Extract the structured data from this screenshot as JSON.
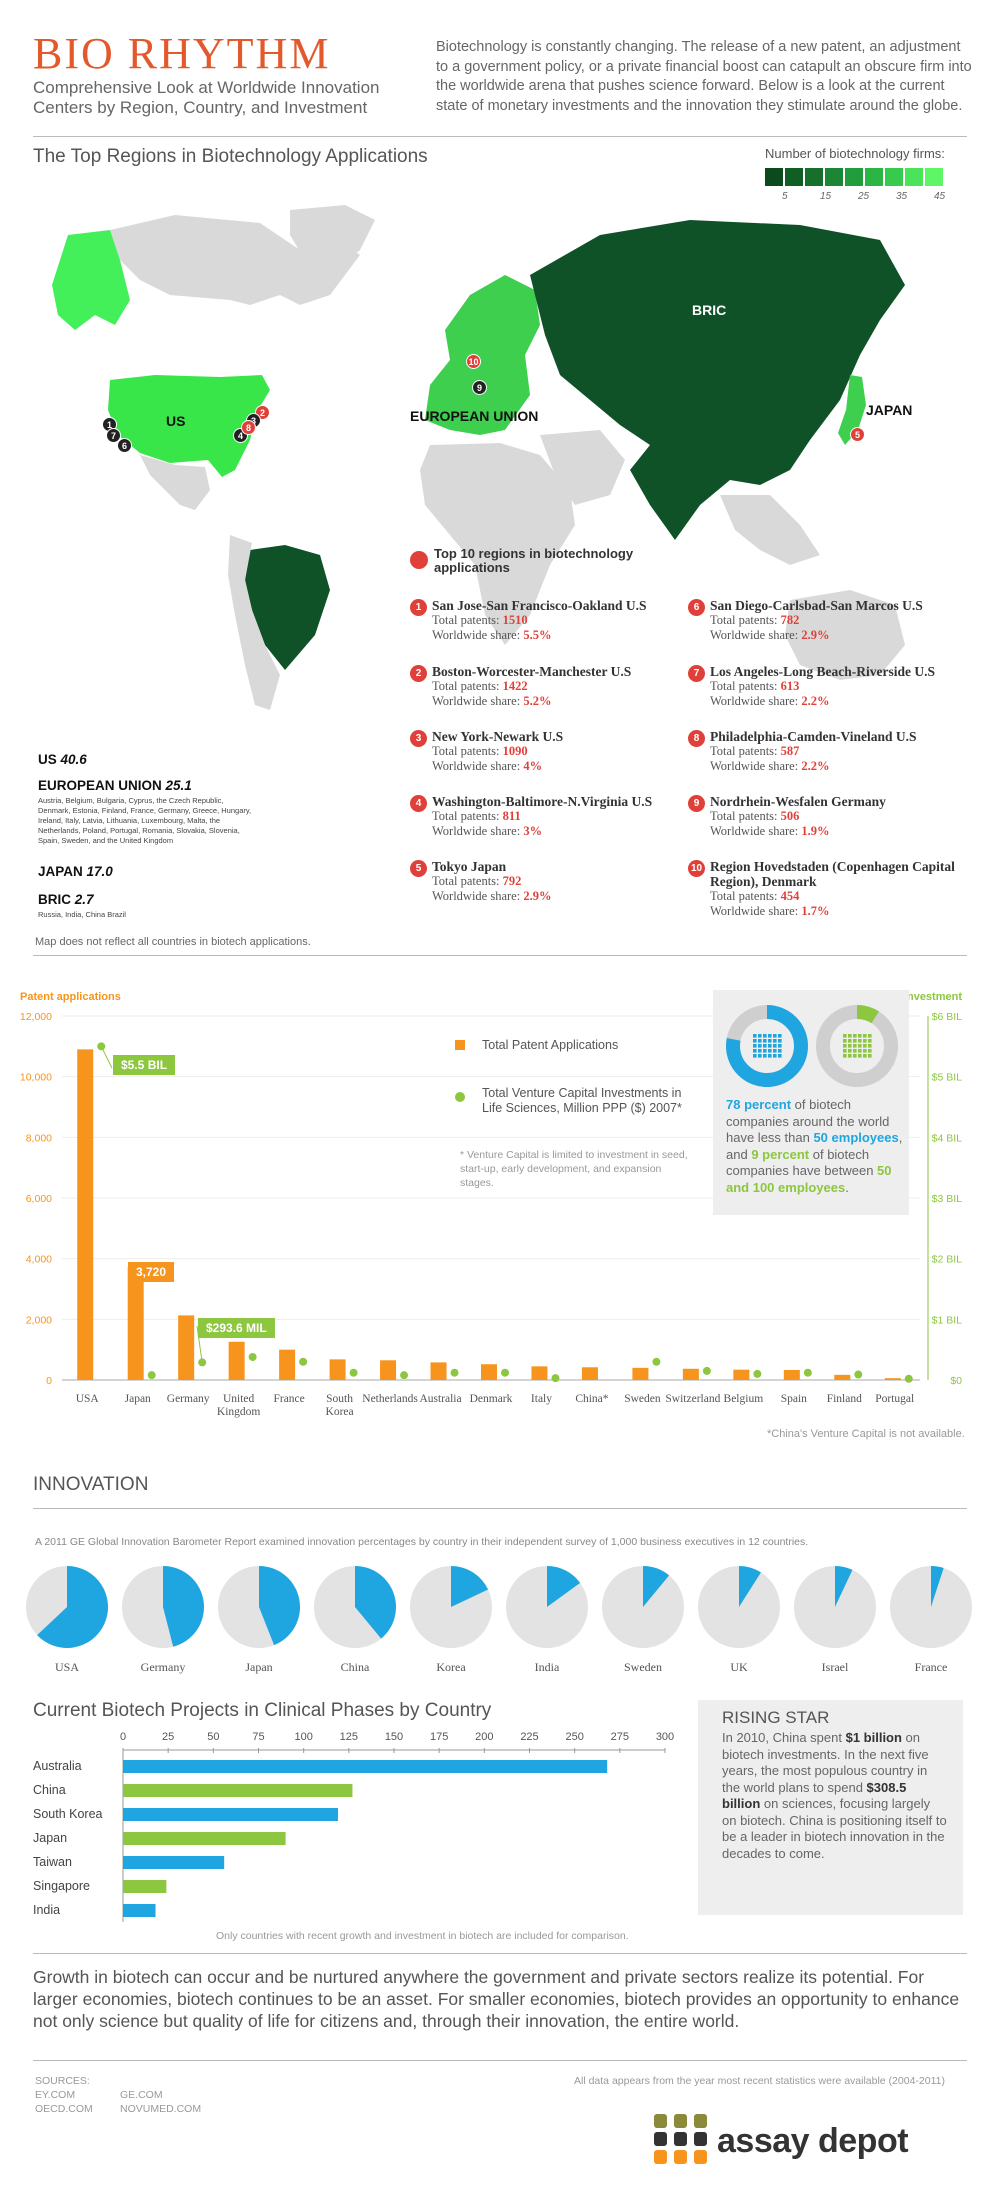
{
  "header": {
    "title": "BIO RHYTHM",
    "subtitle": "Comprehensive Look at Worldwide Innovation Centers by Region, Country, and Investment",
    "intro": "Biotechnology is constantly changing. The release of a new patent, an adjustment to a government policy, or a private financial boost can catapult an obscure firm into the worldwide arena that pushes science forward. Below is a look at the current state of monetary investments and the innovation they stimulate around the globe."
  },
  "map": {
    "title": "The Top Regions in Biotechnology Applications",
    "firms_legend": {
      "title": "Number of biotechnology firms:",
      "ticks": [
        "5",
        "15",
        "25",
        "35",
        "45"
      ],
      "colors": [
        "#0c4a1e",
        "#115e25",
        "#16702c",
        "#1c8634",
        "#229d3c",
        "#2ab545",
        "#36cb4e",
        "#49e45a",
        "#5ef566"
      ]
    },
    "colors": {
      "land": "#d9d9d9",
      "us": "#39e64a",
      "alaska": "#43f05a",
      "eu": "#3dcf4d",
      "bric": "#0f5228",
      "japan": "#3dcf4d"
    },
    "region_labels": {
      "us": "US",
      "eu": "EUROPEAN UNION",
      "bric": "BRIC",
      "japan": "JAPAN"
    },
    "legend_label": "Top 10 regions in biotechnology applications",
    "top10": [
      {
        "num": "1",
        "name": "San Jose-San Francisco-Oakland U.S",
        "patents_label": "Total patents:",
        "patents": "1510",
        "share_label": "Worldwide share:",
        "share": "5.5%"
      },
      {
        "num": "2",
        "name": "Boston-Worcester-Manchester U.S",
        "patents_label": "Total patents:",
        "patents": "1422",
        "share_label": "Worldwide share:",
        "share": "5.2%"
      },
      {
        "num": "3",
        "name": "New York-Newark U.S",
        "patents_label": "Total patents:",
        "patents": "1090",
        "share_label": "Worldwide share:",
        "share": "4%"
      },
      {
        "num": "4",
        "name": "Washington-Baltimore-N.Virginia U.S",
        "patents_label": "Total patents:",
        "patents": "811",
        "share_label": "Worldwide share:",
        "share": "3%"
      },
      {
        "num": "5",
        "name": "Tokyo Japan",
        "patents_label": "Total patents:",
        "patents": "792",
        "share_label": "Worldwide share:",
        "share": "2.9%"
      },
      {
        "num": "6",
        "name": "San Diego-Carlsbad-San Marcos U.S",
        "patents_label": "Total patents:",
        "patents": "782",
        "share_label": "Worldwide share:",
        "share": "2.9%"
      },
      {
        "num": "7",
        "name": "Los Angeles-Long Beach-Riverside U.S",
        "patents_label": "Total patents:",
        "patents": "613",
        "share_label": "Worldwide share:",
        "share": "2.2%"
      },
      {
        "num": "8",
        "name": "Philadelphia-Camden-Vineland U.S",
        "patents_label": "Total patents:",
        "patents": "587",
        "share_label": "Worldwide share:",
        "share": "2.2%"
      },
      {
        "num": "9",
        "name": "Nordrhein-Wesfalen Germany",
        "patents_label": "Total patents:",
        "patents": "506",
        "share_label": "Worldwide share:",
        "share": "1.9%"
      },
      {
        "num": "10",
        "name": "Region Hovedstaden (Copenhagen Capital Region), Denmark",
        "patents_label": "Total patents:",
        "patents": "454",
        "share_label": "Worldwide share:",
        "share": "1.7%"
      }
    ],
    "shares": [
      {
        "name": "US",
        "value": "40.6",
        "sub": ""
      },
      {
        "name": "EUROPEAN UNION",
        "value": "25.1",
        "sub": "Austria, Belgium, Bulgaria, Cyprus, the Czech Republic, Denmark, Estonia, Finland, France, Germany, Greece, Hungary, Ireland, Italy, Latvia, Lithuania, Luxembourg, Malta, the Netherlands, Poland, Portugal, Romania, Slovakia, Slovenia, Spain, Sweden, and the United Kingdom"
      },
      {
        "name": "JAPAN",
        "value": "17.0",
        "sub": ""
      },
      {
        "name": "BRIC",
        "value": "2.7",
        "sub": "Russia, India, China Brazil"
      }
    ],
    "note": "Map does not reflect all countries in biotech applications."
  },
  "patent_chart": {
    "callouts": {
      "usa_vc": "$5.5 BIL",
      "japan_patents": "3,720",
      "germany_vc": "$293.6 MIL"
    },
    "legend": {
      "patents": "Total Patent Applications",
      "vc": "Total Venture Capital Investments in Life Sciences, Million PPP ($) 2007*"
    },
    "vc_note": "* Venture Capital is limited to investment in seed, start-up, early development, and expansion stages.",
    "china_note": "*China's Venture Capital is not available.",
    "employees": {
      "sentence_parts": [
        "78 percent",
        " of biotech companies around the world have less than ",
        "50 employees",
        ", and ",
        "9 percent",
        " of biotech companies have between ",
        "50 and 100 employees",
        "."
      ],
      "blue_pct": 78,
      "green_pct": 9,
      "blue": "#1fa6e0",
      "green": "#8dc63f"
    }
  },
  "chart_data": [
    {
      "type": "bar",
      "title": "Patent applications and venture capital investment by country",
      "ylabel": "Patent applications",
      "y2label": "Investment",
      "ylim": [
        0,
        12000
      ],
      "y2lim": [
        0,
        6
      ],
      "yticks": [
        "0",
        "2,000",
        "4,000",
        "6,000",
        "8,000",
        "10,000",
        "12,000"
      ],
      "y2ticks": [
        "$0",
        "$1 BIL",
        "$2 BIL",
        "$3 BIL",
        "$4 BIL",
        "$5 BIL",
        "$6 BIL"
      ],
      "categories": [
        "USA",
        "Japan",
        "Germany",
        "United Kingdom",
        "France",
        "South Korea",
        "Netherlands",
        "Australia",
        "Denmark",
        "Italy",
        "China*",
        "Sweden",
        "Switzerland",
        "Belgium",
        "Spain",
        "Finland",
        "Portugal"
      ],
      "series": [
        {
          "name": "Total Patent Applications",
          "axis": "left",
          "color": "#f7941d",
          "values": [
            10900,
            3720,
            2130,
            1260,
            1000,
            680,
            650,
            580,
            520,
            450,
            420,
            400,
            370,
            340,
            330,
            170,
            60
          ]
        },
        {
          "name": "Total Venture Capital Investments in Life Sciences, Million PPP ($) 2007*",
          "axis": "right",
          "color": "#8dc63f",
          "values": [
            5.5,
            0.08,
            0.29,
            0.38,
            0.3,
            0.12,
            0.08,
            0.12,
            0.12,
            0.03,
            null,
            0.3,
            0.15,
            0.1,
            0.12,
            0.09,
            0.02
          ]
        }
      ]
    },
    {
      "type": "pie",
      "title": "INNOVATION",
      "description": "A 2011 GE Global Innovation Barometer Report examined innovation percentages by country in their independent survey of 1,000 business executives in 12 countries.",
      "categories": [
        "USA",
        "Germany",
        "Japan",
        "China",
        "Korea",
        "India",
        "Sweden",
        "UK",
        "Israel",
        "France"
      ],
      "values": [
        63,
        46,
        44,
        39,
        18,
        15,
        11,
        9,
        7,
        5
      ],
      "color": "#1fa6e0",
      "rest_color": "#e3e3e3"
    },
    {
      "type": "bar",
      "orientation": "horizontal",
      "title": "Current Biotech Projects in Clinical Phases by Country",
      "xlim": [
        0,
        300
      ],
      "xticks": [
        "0",
        "25",
        "50",
        "75",
        "100",
        "125",
        "150",
        "175",
        "200",
        "225",
        "250",
        "275",
        "300"
      ],
      "categories": [
        "Australia",
        "China",
        "South Korea",
        "Japan",
        "Taiwan",
        "Singapore",
        "India"
      ],
      "values": [
        268,
        127,
        119,
        90,
        56,
        24,
        18
      ],
      "colors": [
        "#1fa6e0",
        "#8dc63f",
        "#1fa6e0",
        "#8dc63f",
        "#1fa6e0",
        "#8dc63f",
        "#1fa6e0"
      ],
      "note": "Only countries with recent growth and investment in biotech are included for comparison."
    }
  ],
  "rising_star": {
    "title": "RISING STAR",
    "text_parts": [
      "In 2010, China spent ",
      "$1 billion",
      " on biotech investments. In the next five years, the most populous country in the world plans to spend ",
      "$308.5 billion",
      " on sciences, focusing largely on biotech. China is positioning itself to be a leader in biotech innovation in the decades to come."
    ]
  },
  "closing": "Growth in biotech can occur and be nurtured anywhere the government and private sectors realize its potential. For larger economies, biotech continues to be an asset. For smaller economies, biotech provides an opportunity to enhance not only science but quality of life for citizens and, through their innovation, the entire world.",
  "footer": {
    "sources_label": "SOURCES:",
    "sources": [
      "EY.COM",
      "GE.COM",
      "OECD.COM",
      "NOVUMED.COM"
    ],
    "data_note": "All data appears from the year most recent statistics were available (2004-2011)",
    "logo": "assay depot"
  }
}
